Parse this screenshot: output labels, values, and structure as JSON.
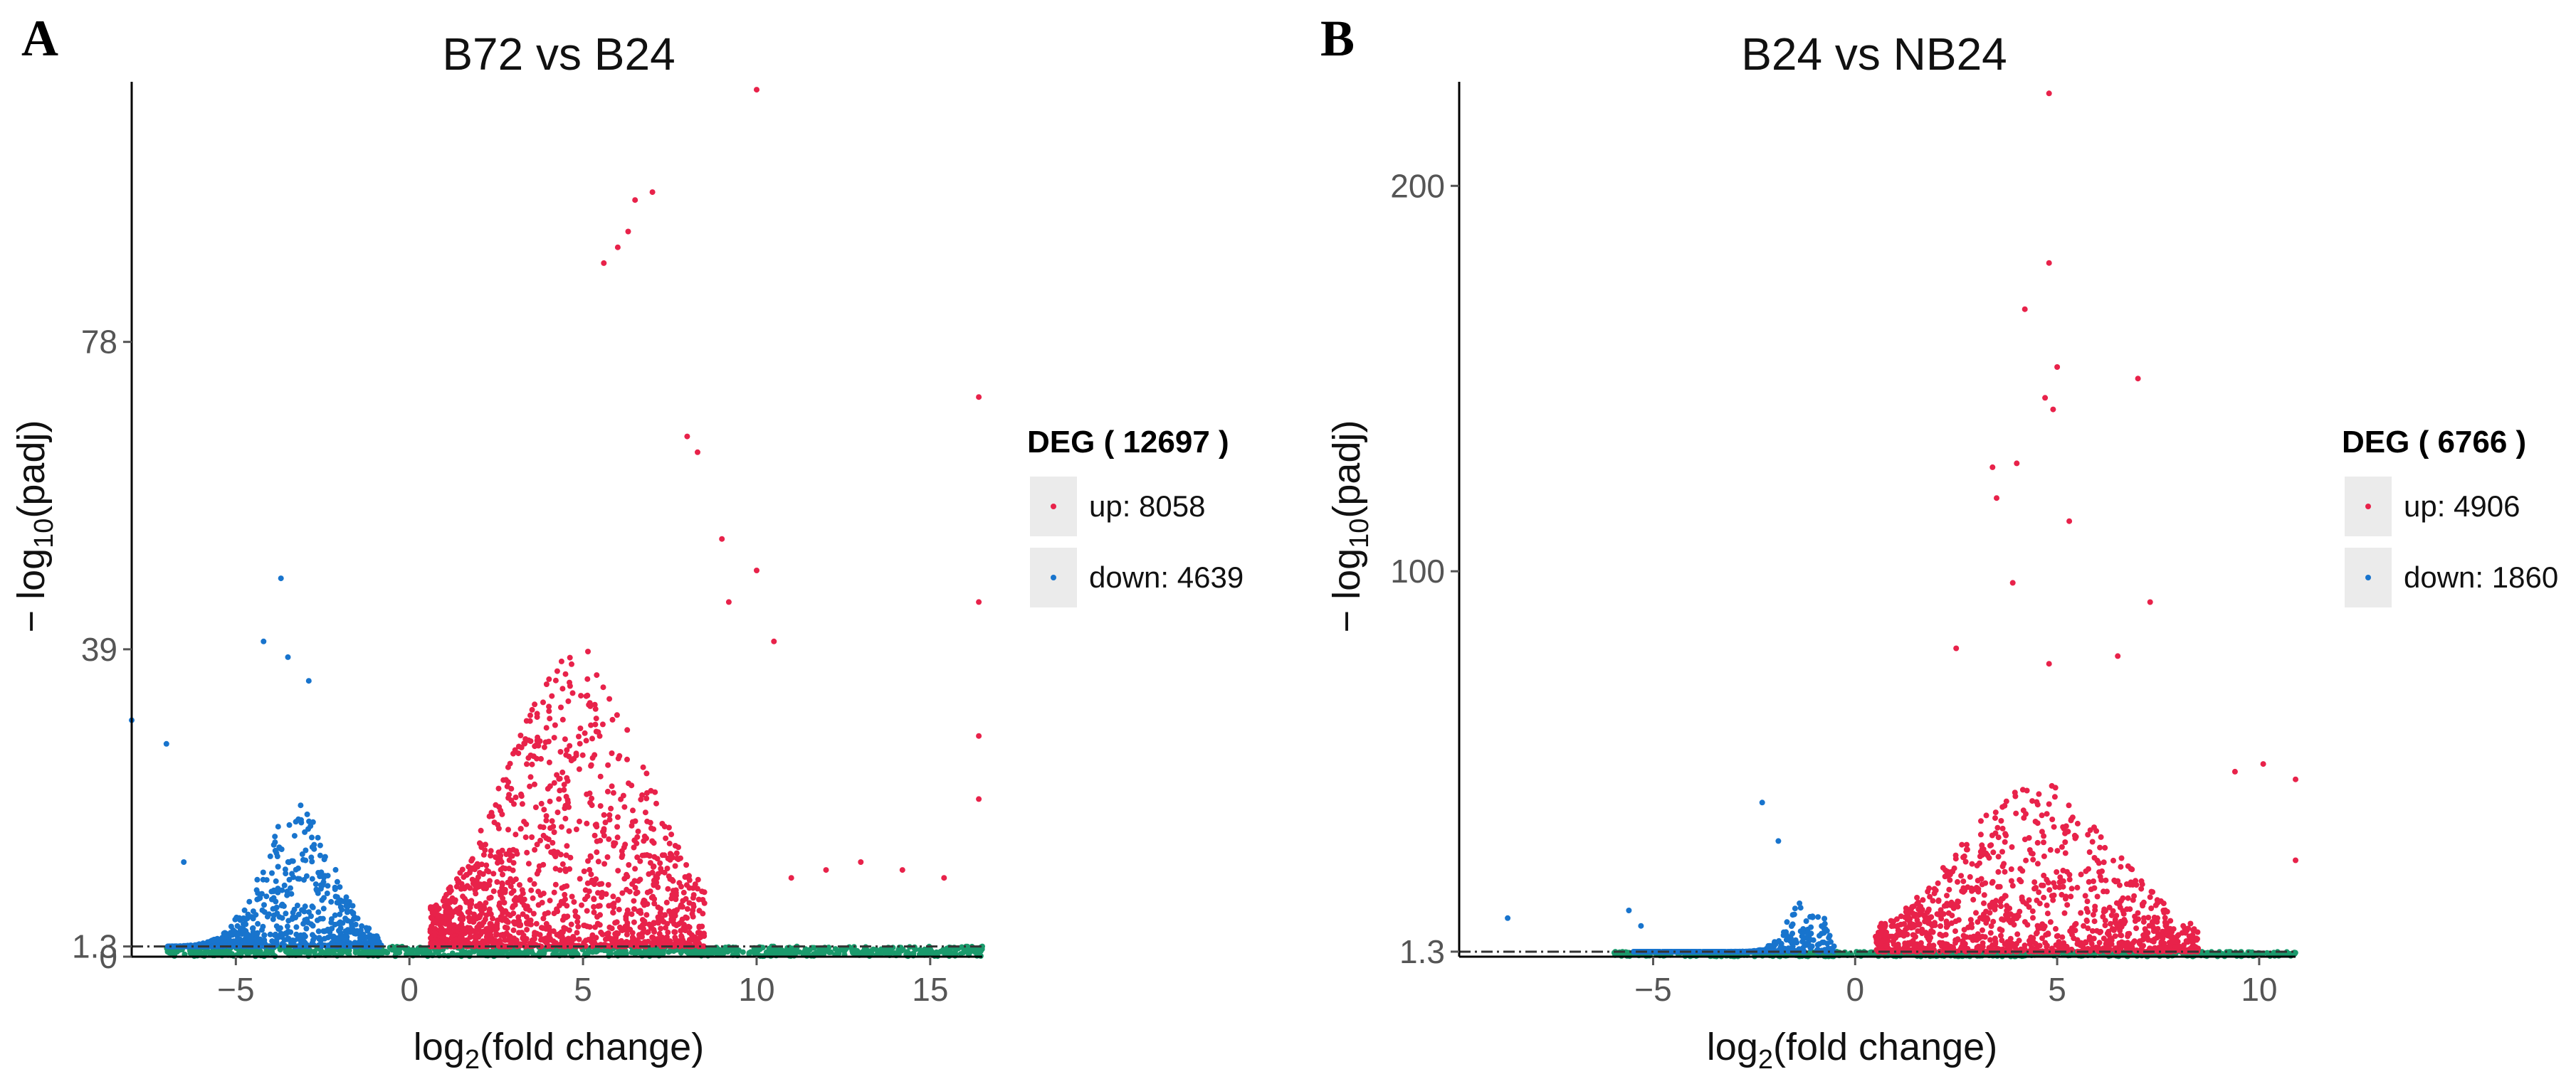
{
  "chart_data": [
    {
      "type": "scatter",
      "panel": "A",
      "title": "B72 vs B24",
      "xlabel": "log2(fold change)",
      "ylabel": "-log10(padj)",
      "xlim": [
        -8,
        16.5
      ],
      "ylim": [
        0,
        111
      ],
      "xticks": [
        -5,
        0,
        5,
        10,
        15
      ],
      "yticks": [
        {
          "v": 0,
          "label": "0"
        },
        {
          "v": 1.3,
          "label": "1.3"
        },
        {
          "v": 39,
          "label": "39"
        },
        {
          "v": 78,
          "label": "78"
        }
      ],
      "threshold": 1.3,
      "legend": {
        "title": "DEG ( 12697 )",
        "up": "up: 8058",
        "down": "down: 4639"
      },
      "counts": {
        "total": 12697,
        "up": 8058,
        "down": 4639
      },
      "colors": {
        "up": "#e8224a",
        "down": "#1874cd",
        "ns": "#1a9a6c"
      },
      "clouds": {
        "up": {
          "xmin": 0.6,
          "xmax": 8.5,
          "peak": 4.8,
          "spread": 1.9,
          "height": 36,
          "count": 1400
        },
        "down": {
          "xmin": -7,
          "xmax": -0.8,
          "peak": -3.2,
          "spread": 1.0,
          "height": 18,
          "count": 750
        },
        "ns": {
          "xmin": -7,
          "xmax": 16.5,
          "count": 900
        }
      },
      "outliers_up": [
        [
          10,
          110
        ],
        [
          7,
          97
        ],
        [
          6.5,
          96
        ],
        [
          6,
          90
        ],
        [
          6.3,
          92
        ],
        [
          5.6,
          88
        ],
        [
          8,
          66
        ],
        [
          8.3,
          64
        ],
        [
          9,
          53
        ],
        [
          10,
          49
        ],
        [
          9.2,
          45
        ],
        [
          10.5,
          40
        ],
        [
          11,
          10
        ],
        [
          12,
          11
        ],
        [
          13,
          12
        ],
        [
          14.2,
          11
        ],
        [
          15.4,
          10
        ],
        [
          16.4,
          71
        ],
        [
          16.4,
          45
        ],
        [
          16.4,
          28
        ],
        [
          16.4,
          20
        ]
      ],
      "outliers_down": [
        [
          -3.7,
          48
        ],
        [
          -4.2,
          40
        ],
        [
          -3.5,
          38
        ],
        [
          -2.9,
          35
        ],
        [
          -7,
          27
        ],
        [
          -8,
          30
        ],
        [
          -6.5,
          12
        ]
      ]
    },
    {
      "type": "scatter",
      "panel": "B",
      "title": "B24 vs NB24",
      "xlabel": "log2(fold change)",
      "ylabel": "-log10(padj)",
      "xlim": [
        -9.8,
        10.9
      ],
      "ylim": [
        0,
        227
      ],
      "xticks": [
        -5,
        0,
        5,
        10
      ],
      "yticks": [
        {
          "v": 1.3,
          "label": "1.3"
        },
        {
          "v": 100,
          "label": "100"
        },
        {
          "v": 200,
          "label": "200"
        }
      ],
      "threshold": 1.3,
      "legend": {
        "title": "DEG ( 6766 )",
        "up": "up: 4906",
        "down": "down: 1860"
      },
      "counts": {
        "total": 6766,
        "up": 4906,
        "down": 1860
      },
      "colors": {
        "up": "#e8224a",
        "down": "#1874cd",
        "ns": "#1a9a6c"
      },
      "clouds": {
        "up": {
          "xmin": 0.5,
          "xmax": 8.5,
          "peak": 4.5,
          "spread": 1.9,
          "height": 42,
          "count": 1100
        },
        "down": {
          "xmin": -5.5,
          "xmax": -0.5,
          "peak": -1.2,
          "spread": 0.45,
          "height": 14,
          "count": 450
        },
        "ns": {
          "xmin": -6,
          "xmax": 10.9,
          "count": 700
        }
      },
      "outliers_up": [
        [
          4.8,
          224
        ],
        [
          4.8,
          180
        ],
        [
          4.2,
          168
        ],
        [
          5,
          153
        ],
        [
          7,
          150
        ],
        [
          4.7,
          145
        ],
        [
          4.9,
          142
        ],
        [
          3.4,
          127
        ],
        [
          4,
          128
        ],
        [
          3.5,
          119
        ],
        [
          5.3,
          113
        ],
        [
          3.9,
          97
        ],
        [
          7.3,
          92
        ],
        [
          2.5,
          80
        ],
        [
          4.8,
          76
        ],
        [
          6.5,
          78
        ],
        [
          9.4,
          48
        ],
        [
          10.1,
          50
        ],
        [
          10.9,
          46
        ],
        [
          10.9,
          25
        ]
      ],
      "outliers_down": [
        [
          -2.3,
          40
        ],
        [
          -1.9,
          30
        ],
        [
          -8.6,
          10
        ],
        [
          -5.6,
          12
        ],
        [
          -5.3,
          8
        ]
      ]
    }
  ]
}
